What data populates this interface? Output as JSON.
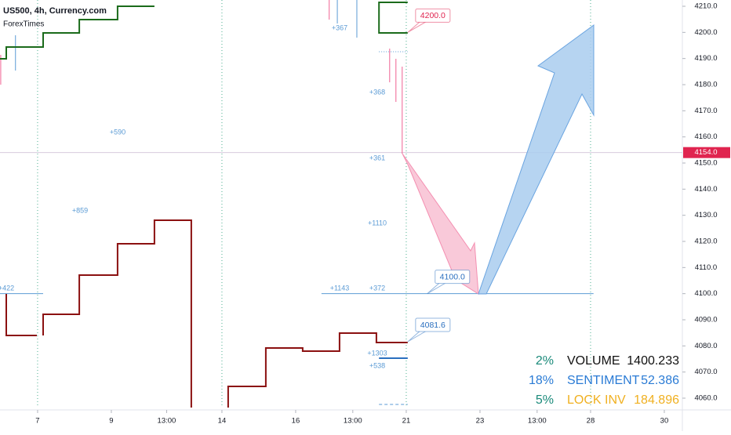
{
  "chart_data": {
    "type": "line",
    "title": "US500, 4h, Currency.com",
    "subtitle": "ForexTimes",
    "xlim": [
      -1.02,
      17.49
    ],
    "ylim": [
      4056.4,
      4212.4
    ],
    "xticks": [
      {
        "value": 0,
        "label": "7"
      },
      {
        "value": 2,
        "label": "9"
      },
      {
        "value": 3.5,
        "label": "13:00"
      },
      {
        "value": 5,
        "label": "14"
      },
      {
        "value": 7,
        "label": "16"
      },
      {
        "value": 8.55,
        "label": "13:00"
      },
      {
        "value": 10,
        "label": "21"
      },
      {
        "value": 12,
        "label": "23"
      },
      {
        "value": 13.55,
        "label": "13:00"
      },
      {
        "value": 15,
        "label": "28"
      },
      {
        "value": 17,
        "label": "30"
      }
    ],
    "yticks": [
      {
        "value": 4060,
        "label": "4060.0"
      },
      {
        "value": 4070,
        "label": "4070.0"
      },
      {
        "value": 4080,
        "label": "4080.0"
      },
      {
        "value": 4090,
        "label": "4090.0"
      },
      {
        "value": 4100,
        "label": "4100.0"
      },
      {
        "value": 4110,
        "label": "4110.0"
      },
      {
        "value": 4120,
        "label": "4120.0"
      },
      {
        "value": 4130,
        "label": "4130.0"
      },
      {
        "value": 4140,
        "label": "4140.0"
      },
      {
        "value": 4150,
        "label": "4150.0"
      },
      {
        "value": 4160,
        "label": "4160.0"
      },
      {
        "value": 4170,
        "label": "4170.0"
      },
      {
        "value": 4180,
        "label": "4180.0"
      },
      {
        "value": 4190,
        "label": "4190.0"
      },
      {
        "value": 4200,
        "label": "4200.0"
      },
      {
        "value": 4210,
        "label": "4210.0"
      }
    ],
    "week_lines": [
      0,
      5,
      10,
      15
    ],
    "series": [
      {
        "color": "#1b6b1b",
        "x": [
          -1.02,
          -0.85,
          -0.85,
          0.15,
          0.15,
          1.13,
          1.13,
          2.17,
          2.17,
          3.17
        ],
        "values": [
          4189.9,
          4189.9,
          4194.4,
          4194.4,
          4199.8,
          4199.8,
          4204.9,
          4204.9,
          4210.0,
          4210.0
        ]
      },
      {
        "color": "#1b6b1b",
        "x": [
          10.04,
          9.26,
          9.26,
          10.04
        ],
        "values": [
          4211.5,
          4211.5,
          4199.8,
          4199.8
        ]
      },
      {
        "color": "#8b1010",
        "x": [
          -0.85,
          -0.85,
          -0.02,
          0.0,
          0.15,
          0.15,
          1.13,
          1.13,
          2.17,
          2.17,
          3.17,
          3.17,
          4.17,
          4.17
        ],
        "values": [
          4099.9,
          4084.0,
          4084.0,
          null,
          4084.0,
          4092.1,
          4092.1,
          4107.1,
          4107.1,
          4119.1,
          4119.1,
          4128.1,
          4128.1,
          4056.4
        ]
      },
      {
        "color": "#8b1010",
        "x": [
          5.17,
          5.17,
          6.19,
          6.19,
          7.19,
          7.19,
          8.19,
          8.19,
          9.19,
          9.19,
          10.04
        ],
        "values": [
          4056.4,
          4064.5,
          4064.5,
          4079.2,
          4079.2,
          4078.0,
          4078.0,
          4084.9,
          4084.9,
          4081.3,
          4081.3
        ]
      }
    ],
    "wicks": [
      {
        "color": "#f06292",
        "x": 9.55,
        "high": 4193.8,
        "low": 4180.9
      },
      {
        "color": "#f06292",
        "x": 9.72,
        "high": 4189.9,
        "low": 4173.4
      },
      {
        "color": "#f06292",
        "x": 9.89,
        "high": 4186.9,
        "low": 4153.6
      },
      {
        "color": "#f06292",
        "x": 7.91,
        "high": 4212.4,
        "low": 4204.9
      },
      {
        "color": "#5b9bd5",
        "x": 8.13,
        "high": 4212.4,
        "low": 4203.4
      },
      {
        "color": "#5b9bd5",
        "x": 8.66,
        "high": 4212.4,
        "low": 4198.0
      },
      {
        "color": "#5b9bd5",
        "x": -0.6,
        "high": 4198.9,
        "low": 4185.4
      },
      {
        "color": "#f06292",
        "x": -1.0,
        "high": 4191.4,
        "low": 4180.0
      }
    ],
    "levels": [
      {
        "price": 4100,
        "x": [
          -1.02,
          0.15
        ],
        "color": "#5b9bd5",
        "style": "solid"
      },
      {
        "price": 4100,
        "x": [
          7.7,
          15.08
        ],
        "color": "#5b9bd5",
        "style": "solid"
      },
      {
        "price": 4192.6,
        "x": [
          9.26,
          10.04
        ],
        "color": "#5b9bd5",
        "style": "dotted"
      },
      {
        "price": 4057.6,
        "x": [
          9.26,
          10.04
        ],
        "color": "#5b9bd5",
        "style": "dashed"
      },
      {
        "price": 4075.3,
        "x": [
          9.26,
          10.04
        ],
        "color": "#2a6fbf",
        "style": "thick"
      }
    ],
    "last_price": {
      "value": 4154,
      "label": "4154.0",
      "color": "#e0244f"
    },
    "callouts": [
      {
        "value": 4200,
        "label": "4200.0",
        "x": 10.04,
        "color": "#e0244f"
      },
      {
        "value": 4100,
        "label": "4100.0",
        "x": 10.57,
        "color": "#2a6fbf"
      },
      {
        "value": 4081.6,
        "label": "4081.6",
        "x": 10.04,
        "color": "#2a6fbf"
      }
    ],
    "notes": [
      "+367",
      "+368",
      "+361",
      "+1110",
      "+372",
      "+1143",
      "+590",
      "+859",
      "+422",
      "+1303",
      "+538"
    ],
    "stats": [
      {
        "pct": "2%",
        "name": "VOLUME",
        "value": "1400.233",
        "pct_color": "#1a8a7a",
        "color": "#111111"
      },
      {
        "pct": "18%",
        "name": "SENTIMENT",
        "value": "52.386",
        "pct_color": "#2a7bd5",
        "color": "#2a7bd5"
      },
      {
        "pct": "5%",
        "name": "LOCK INV",
        "value": "184.896",
        "pct_color": "#1a8a7a",
        "color": "#f0b020"
      }
    ]
  }
}
